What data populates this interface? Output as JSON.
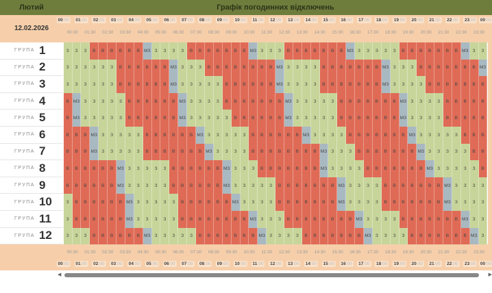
{
  "header": {
    "month": "Лютий",
    "title": "Графік погодинних відключень",
    "date": "12.02.2026"
  },
  "legend": {
    "З": "on",
    "В": "off",
    "МЗ": "maybe"
  },
  "colors": {
    "on": "#c8d59a",
    "off": "#df6b56",
    "maybe": "#a9b9c1",
    "title_bar": "#6e7d3c",
    "header": "#f6cfaa"
  },
  "hours": [
    "00",
    "01",
    "02",
    "03",
    "04",
    "05",
    "06",
    "07",
    "08",
    "09",
    "10",
    "11",
    "12",
    "13",
    "14",
    "15",
    "16",
    "17",
    "18",
    "19",
    "20",
    "21",
    "22",
    "23",
    "00"
  ],
  "hour_suffix": ":00",
  "half_hours": [
    "00:30",
    "01:30",
    "02:30",
    "03:30",
    "04:30",
    "05:30",
    "06:30",
    "07:30",
    "08:30",
    "09:30",
    "10:30",
    "11:30",
    "12:30",
    "13:30",
    "14:30",
    "15:30",
    "16:30",
    "17:30",
    "18:30",
    "19:30",
    "20:30",
    "21:30",
    "22:30",
    "23:30"
  ],
  "group_word": "ГРУПА",
  "groups": [
    {
      "num": "1",
      "cells": "З З З В В В В В В МЗ З З З З В В В В В В В МЗ З З З В В В В В В В МЗ З З З З З В В В В В В В МЗ З З"
    },
    {
      "num": "2",
      "cells": "З З З З З З В В В В В В МЗ З З З В В В В В В В В МЗ З З З З В В В В В В В МЗ З З З В В В В В В В МЗ"
    },
    {
      "num": "3",
      "cells": "З З З З З З В В В В В В МЗ З З З З З В В В В В В МЗ З З З З В В В В В В В МЗ З З З З В В В В В В В"
    },
    {
      "num": "4",
      "cells": "В МЗ З З З З З В В В В В В МЗ З З З З В В В В В В В МЗ З З З З З В В В В В В В МЗ З З З З В В В В В"
    },
    {
      "num": "5",
      "cells": "В МЗ З З З З З В В В В В В МЗ З З З З З В В В В В В МЗ З З З З З В В В В В В В МЗ З З З З В В В В В"
    },
    {
      "num": "6",
      "cells": "В В В МЗ З З З З З В В В В В В МЗ З З З З З В В В В В В МЗ З З З З В В В В В В В МЗ З З З З З В В В"
    },
    {
      "num": "7",
      "cells": "В В В МЗ З З З З З В В В В В В В МЗ З З З З В В В В В В В В МЗ З З З В В В В В В В МЗ З З З З З В В"
    },
    {
      "num": "8",
      "cells": "В В В В В В МЗ З З З З З В В В В В В МЗ З З З В В В В В В В МЗ З З З З В В В В В В В МЗ З З З З З В"
    },
    {
      "num": "9",
      "cells": "В В В В В В МЗ З З З З З В В В В В В МЗ З З З З З В В В В В В В МЗ З З З З В В В В В В В МЗ З З З З"
    },
    {
      "num": "10",
      "cells": "З В В В В В В МЗ З З З З З В В В В В В МЗ З З З З В В В В В В В МЗ З З З З В В В В В В В МЗ З З З З"
    },
    {
      "num": "11",
      "cells": "З В В В В В В МЗ З З З З З В В В В В В В В МЗ З З З В В В В В В В В МЗ З З З З В В В В В В В МЗ З З"
    },
    {
      "num": "12",
      "cells": "З З З В В В В В В МЗ З З З З З В В В В В В В МЗ З З З З В В В В В В В МЗ З З З З В В В В В В В МЗ З"
    }
  ]
}
